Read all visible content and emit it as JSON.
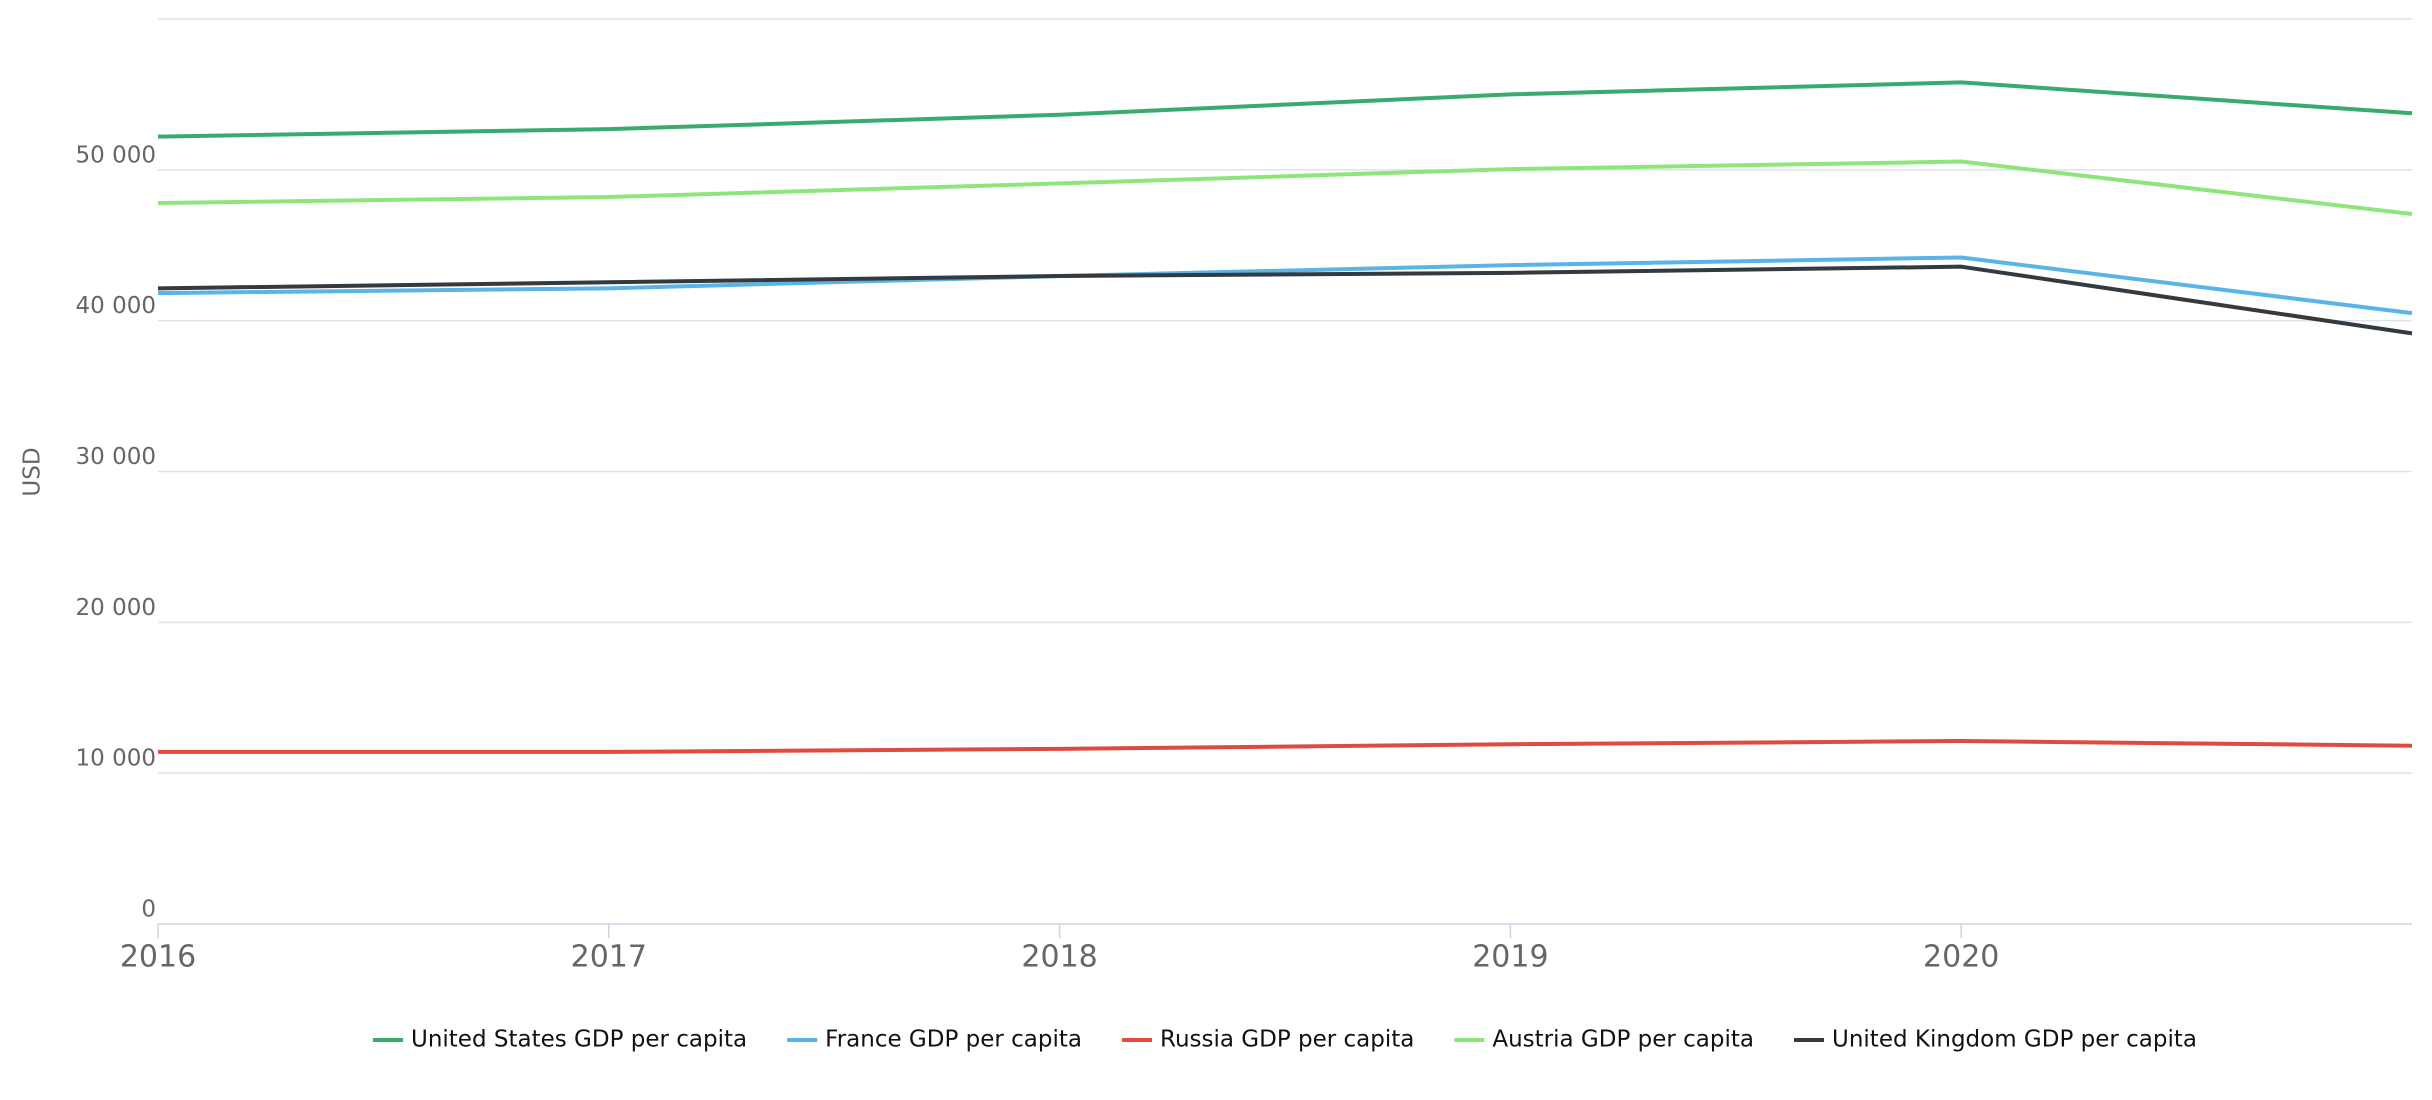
{
  "chart_data": {
    "type": "line",
    "y_label": "USD",
    "x": [
      2016,
      2017,
      2018,
      2019,
      2020,
      2021
    ],
    "xlim": [
      2016,
      2021
    ],
    "xticks": [
      2016,
      2017,
      2018,
      2019,
      2020
    ],
    "ylim": [
      0,
      60000
    ],
    "yticks": [
      0,
      {
        "value": 10000,
        "label": "10 000"
      },
      {
        "value": 20000,
        "label": "20 000"
      },
      {
        "value": 30000,
        "label": "30 000"
      },
      {
        "value": 40000,
        "label": "40 000"
      },
      {
        "value": 50000,
        "label": "50 000"
      }
    ],
    "grid": true,
    "legend": "bottom",
    "series": [
      {
        "name": "United States GDP per capita",
        "color": "#3aaa6e",
        "values": [
          52200,
          52700,
          53650,
          55000,
          55800,
          53750
        ]
      },
      {
        "name": "France GDP per capita",
        "color": "#5ab4e5",
        "values": [
          41830,
          42140,
          42960,
          43680,
          44190,
          40500
        ]
      },
      {
        "name": "Russia GDP per capita",
        "color": "#e04a3f",
        "values": [
          11410,
          11410,
          11610,
          11920,
          12130,
          11820
        ]
      },
      {
        "name": "Austria GDP per capita",
        "color": "#8ee67a",
        "values": [
          47800,
          48200,
          49100,
          50050,
          50550,
          47070
        ]
      },
      {
        "name": "United Kingdom GDP per capita",
        "color": "#333a40",
        "values": [
          42140,
          42550,
          42960,
          43170,
          43580,
          39160
        ]
      }
    ]
  }
}
